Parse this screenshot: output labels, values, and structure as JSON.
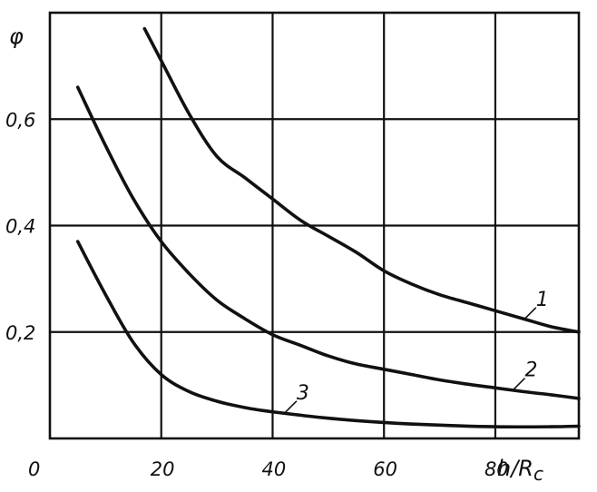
{
  "chart_data": {
    "type": "line",
    "title": "",
    "xlabel": "h/R",
    "xlabel_sub": "c",
    "ylabel": "φ",
    "xlim": [
      0,
      95
    ],
    "ylim": [
      0,
      0.8
    ],
    "x_ticks": [
      0,
      20,
      40,
      60,
      80
    ],
    "x_tick_labels": [
      "0",
      "20",
      "40",
      "60",
      "80"
    ],
    "y_ticks": [
      0.2,
      0.4,
      0.6
    ],
    "y_tick_labels": [
      "0,2",
      "0,4",
      "0,6"
    ],
    "grid": true,
    "colors": {
      "line": "#111111",
      "grid": "#111111",
      "background": "#ffffff"
    },
    "series": [
      {
        "name": "1",
        "x": [
          17,
          20,
          25,
          30,
          35,
          40,
          45,
          50,
          55,
          60,
          65,
          70,
          75,
          80,
          85,
          90,
          95
        ],
        "y": [
          0.77,
          0.71,
          0.61,
          0.53,
          0.49,
          0.45,
          0.41,
          0.38,
          0.35,
          0.315,
          0.29,
          0.27,
          0.255,
          0.24,
          0.225,
          0.21,
          0.2
        ]
      },
      {
        "name": "2",
        "x": [
          5,
          10,
          15,
          20,
          25,
          30,
          35,
          40,
          45,
          50,
          55,
          60,
          65,
          70,
          75,
          80,
          85,
          90,
          95
        ],
        "y": [
          0.66,
          0.55,
          0.45,
          0.37,
          0.31,
          0.26,
          0.225,
          0.195,
          0.175,
          0.155,
          0.14,
          0.13,
          0.12,
          0.11,
          0.102,
          0.095,
          0.088,
          0.082,
          0.075
        ]
      },
      {
        "name": "3",
        "x": [
          5,
          10,
          15,
          20,
          25,
          30,
          35,
          40,
          50,
          60,
          70,
          80,
          90,
          95
        ],
        "y": [
          0.37,
          0.27,
          0.18,
          0.12,
          0.088,
          0.07,
          0.058,
          0.05,
          0.038,
          0.03,
          0.025,
          0.022,
          0.022,
          0.023
        ]
      }
    ],
    "curve_labels": [
      {
        "text": "1",
        "series": 0,
        "at_x": 86
      },
      {
        "text": "2",
        "series": 1,
        "at_x": 84
      },
      {
        "text": "3",
        "series": 2,
        "at_x": 43
      }
    ]
  }
}
